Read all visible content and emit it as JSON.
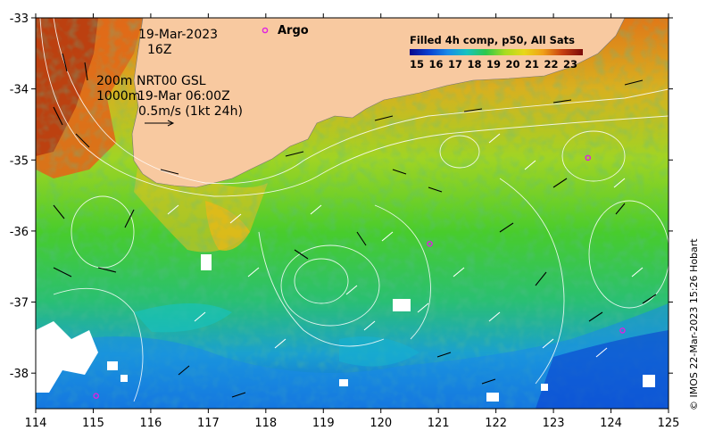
{
  "map": {
    "date": "19-Mar-2023",
    "hour": "16Z",
    "depth_line1": "200m",
    "depth_line2": "1000m",
    "product": "NRT00 GSL",
    "product_time": "19-Mar 06:00Z",
    "scale_label": "0.5m/s (1kt 24h)",
    "argo_label": "Argo",
    "credit": "© IMOS 22-Mar-2023 15:26 Hobart",
    "colorbar": {
      "title": "Filled 4h comp, p50, All Sats",
      "ticks": [
        "15",
        "16",
        "17",
        "18",
        "19",
        "20",
        "21",
        "22",
        "23"
      ],
      "colors": [
        "#08088c",
        "#0a3fd0",
        "#1a8be8",
        "#16c3c0",
        "#2ec84a",
        "#a8dc20",
        "#e8d818",
        "#f0a018",
        "#c84010",
        "#7a0a08"
      ]
    },
    "x_ticks": [
      "114",
      "115",
      "116",
      "117",
      "118",
      "119",
      "120",
      "121",
      "122",
      "123",
      "124",
      "125"
    ],
    "y_ticks": [
      "-33",
      "-34",
      "-35",
      "-36",
      "-37",
      "-38"
    ],
    "argo_floats": [
      {
        "lon": 123.6,
        "lat": -34.97
      },
      {
        "lon": 120.85,
        "lat": -36.18
      },
      {
        "lon": 124.2,
        "lat": -37.4
      },
      {
        "lon": 115.05,
        "lat": -38.32
      }
    ],
    "colors": {
      "land": "#f8c9a0",
      "argo": "#e020e0"
    }
  }
}
